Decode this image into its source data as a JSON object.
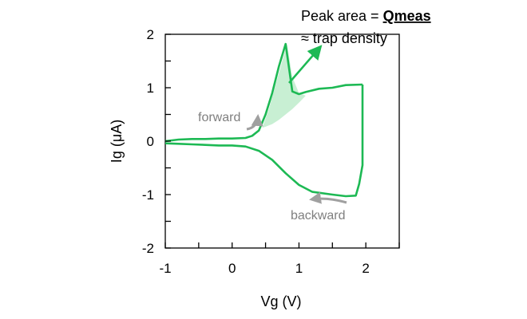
{
  "chart_data": {
    "type": "line",
    "title": "",
    "xlabel": "Vg (V)",
    "ylabel": "Ig (μA)",
    "xlim": [
      -1,
      2.5
    ],
    "ylim": [
      -2,
      2
    ],
    "x_ticks": [
      -1,
      0,
      1,
      2
    ],
    "x_tick_labels": [
      "-1",
      "0",
      "1",
      "2"
    ],
    "y_ticks": [
      -2,
      -1,
      0,
      1,
      2
    ],
    "y_tick_labels": [
      "-2",
      "-1",
      "0",
      "1",
      "2"
    ],
    "grid": false,
    "colors": {
      "curve": "#1db954",
      "shade": "#c8efd3",
      "arrow_gray": "#a0a0a0"
    },
    "series": [
      {
        "name": "forward",
        "x": [
          -1.0,
          -0.8,
          -0.6,
          -0.4,
          -0.2,
          0.0,
          0.2,
          0.3,
          0.4,
          0.5,
          0.6,
          0.7,
          0.8,
          0.9,
          1.0,
          1.1,
          1.3,
          1.5,
          1.7,
          1.95
        ],
        "y": [
          0.0,
          0.03,
          0.04,
          0.04,
          0.05,
          0.05,
          0.06,
          0.1,
          0.2,
          0.5,
          0.9,
          1.4,
          1.82,
          0.93,
          0.88,
          0.92,
          0.98,
          1.0,
          1.05,
          1.06
        ]
      },
      {
        "name": "backward",
        "x": [
          1.95,
          1.95,
          1.9,
          1.85,
          1.7,
          1.5,
          1.2,
          1.0,
          0.8,
          0.6,
          0.4,
          0.2,
          0.0,
          -0.2,
          -0.4,
          -0.6,
          -0.8,
          -1.0
        ],
        "y": [
          1.06,
          -0.45,
          -0.8,
          -1.02,
          -1.03,
          -1.0,
          -0.95,
          -0.82,
          -0.6,
          -0.35,
          -0.18,
          -0.1,
          -0.08,
          -0.08,
          -0.07,
          -0.06,
          -0.05,
          -0.04
        ]
      }
    ],
    "peak_shade": {
      "upper_x": [
        0.45,
        0.55,
        0.65,
        0.75,
        0.82,
        0.9,
        1.0,
        1.1
      ],
      "upper_y": [
        0.25,
        0.6,
        1.05,
        1.5,
        1.82,
        1.2,
        0.9,
        0.85
      ],
      "lower_x": [
        1.1,
        1.0,
        0.9,
        0.8,
        0.7,
        0.6,
        0.5,
        0.45
      ],
      "lower_y": [
        0.85,
        0.72,
        0.6,
        0.5,
        0.4,
        0.32,
        0.27,
        0.25
      ]
    },
    "annotations": {
      "peak_line1_prefix": "Peak area = ",
      "peak_line1_bold": "Qmeas",
      "peak_line2": "≈ trap density",
      "forward_label": "forward",
      "backward_label": "backward"
    }
  }
}
